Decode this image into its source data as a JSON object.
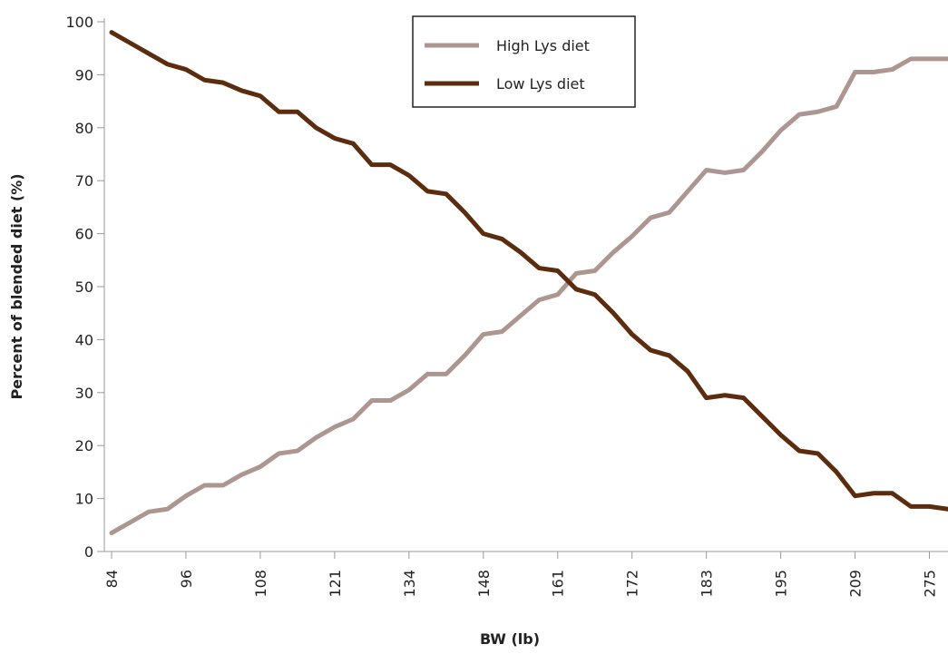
{
  "chart_data": {
    "type": "line",
    "x_label": "BW (lb)",
    "y_label": "Percent of blended diet (%)",
    "categories": [
      "84",
      null,
      null,
      null,
      "96",
      null,
      null,
      null,
      "108",
      null,
      null,
      null,
      "121",
      null,
      null,
      null,
      "134",
      null,
      null,
      null,
      "148",
      null,
      null,
      null,
      "161",
      null,
      null,
      null,
      "172",
      null,
      null,
      null,
      "183",
      null,
      null,
      null,
      "195",
      null,
      null,
      null,
      "209",
      null,
      null,
      null,
      "275",
      null
    ],
    "series": [
      {
        "name": "High Lys diet",
        "color": "#ae9690",
        "values": [
          3.5,
          5.5,
          7.5,
          8,
          10.5,
          12.5,
          12.5,
          14.5,
          16,
          18.5,
          19,
          21.5,
          23.5,
          25,
          28.5,
          28.5,
          30.5,
          33.5,
          33.5,
          37,
          41,
          41.5,
          44.5,
          47.5,
          48.5,
          52.5,
          53,
          56.5,
          59.5,
          63,
          64,
          68,
          72,
          71.5,
          72,
          75.5,
          79.5,
          82.5,
          83,
          84,
          90.5,
          90.5,
          91,
          93,
          93,
          93
        ]
      },
      {
        "name": "Low Lys diet",
        "color": "#5b2d0e",
        "values": [
          98,
          96,
          94,
          92,
          91,
          89,
          88.5,
          87,
          86,
          83,
          83,
          80,
          78,
          77,
          73,
          73,
          71,
          68,
          67.5,
          64,
          60,
          59,
          56.5,
          53.5,
          53,
          49.5,
          48.5,
          45,
          41,
          38,
          37,
          34,
          29,
          29.5,
          29,
          25.5,
          22,
          19,
          18.5,
          15,
          10.5,
          11,
          11,
          8.5,
          8.5,
          8
        ]
      }
    ],
    "ylim": [
      0,
      100
    ],
    "yticks": [
      0,
      10,
      20,
      30,
      40,
      50,
      60,
      70,
      80,
      90,
      100
    ]
  }
}
